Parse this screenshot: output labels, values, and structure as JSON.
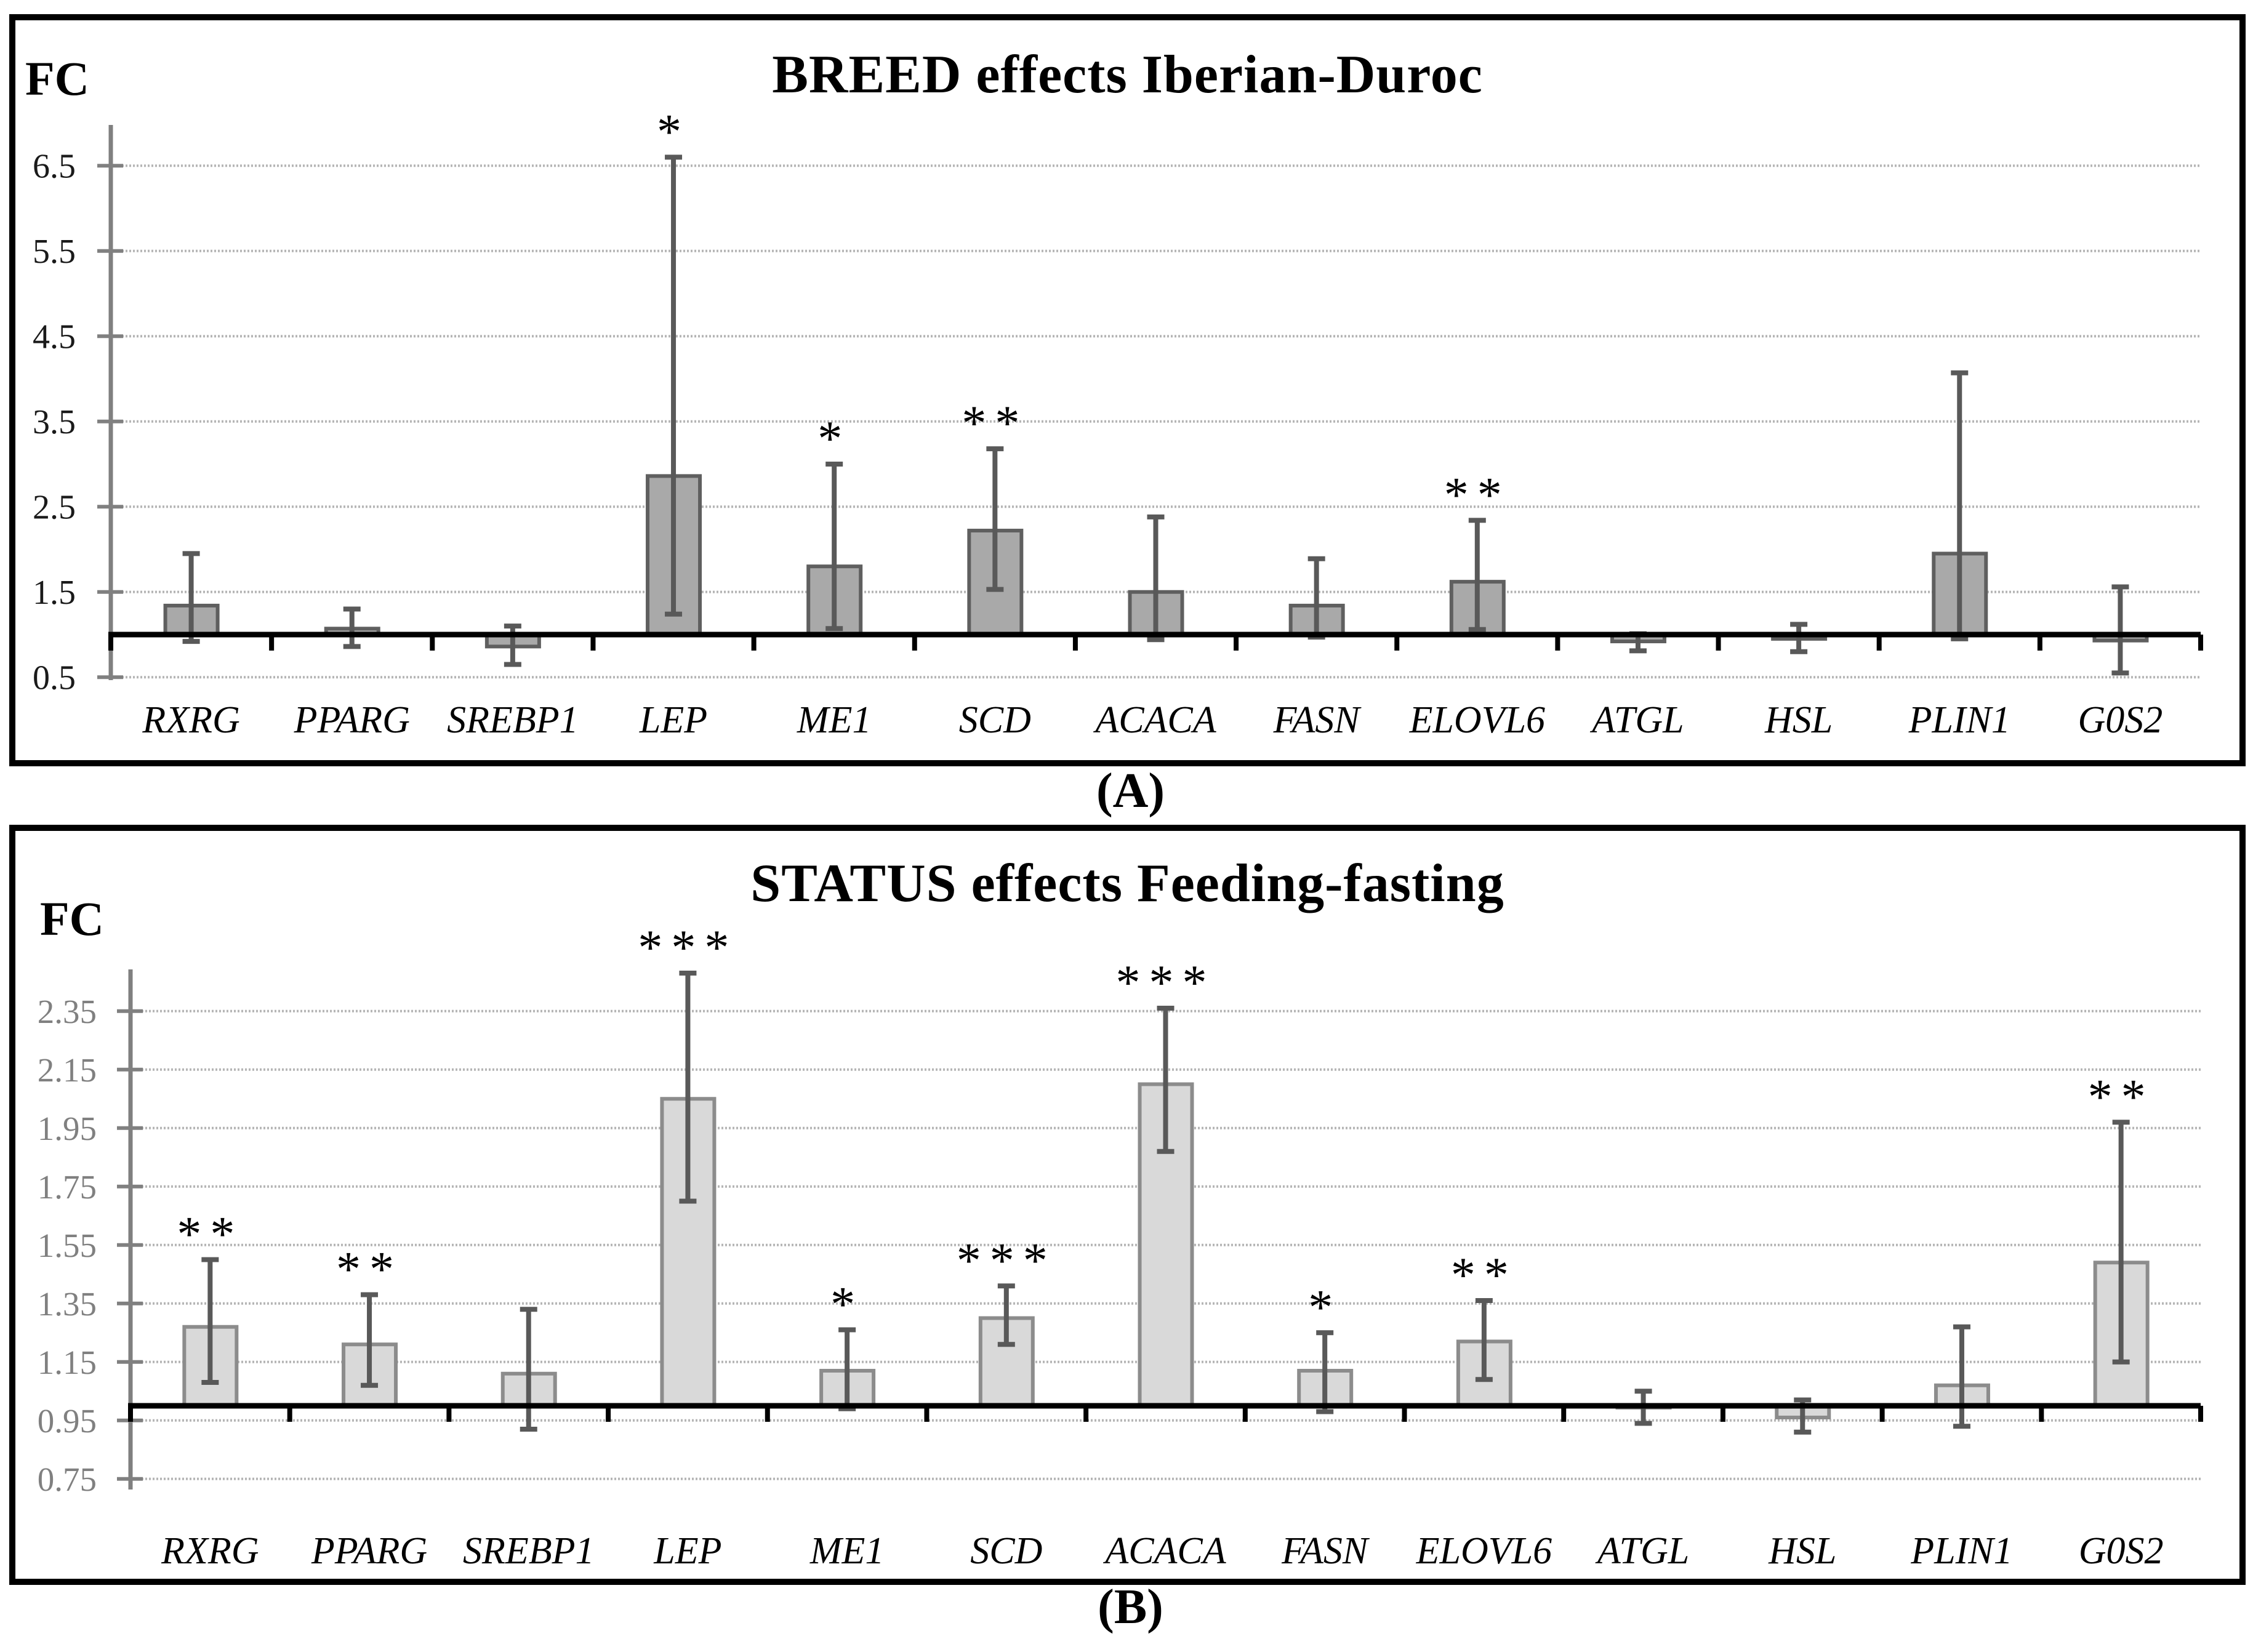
{
  "figure": {
    "captions": [
      "(A)",
      "(B)"
    ]
  },
  "colors": {
    "error_bar": "#595959",
    "gridline": "#b5b5b5",
    "axis": "#808080",
    "baseline": "#000000",
    "significance": "#000000",
    "gene_label": "#000000",
    "panel_a_bar_fill": "#a9a9a9",
    "panel_a_bar_border": "#5f5f5f",
    "panel_b_bar_fill": "#d9d9d9",
    "panel_b_bar_border": "#8c8c8c"
  },
  "chart_data": [
    {
      "type": "bar",
      "title": "BREED effects Iberian-Duroc",
      "ylabel": "FC",
      "xlabel": "",
      "grid": true,
      "legend": "none",
      "baseline": 1.0,
      "ylim": [
        0.45,
        6.98
      ],
      "yticks": [
        0.5,
        1.5,
        2.5,
        3.5,
        4.5,
        5.5,
        6.5
      ],
      "ytick_labels": [
        "0.5",
        "1.5",
        "2.5",
        "3.5",
        "4.5",
        "5.5",
        "6.5"
      ],
      "categories": [
        "RXRG",
        "PPARG",
        "SREBP1",
        "LEP",
        "ME1",
        "SCD",
        "ACACA",
        "FASN",
        "ELOVL6",
        "ATGL",
        "HSL",
        "PLIN1",
        "G0S2"
      ],
      "values": [
        1.34,
        1.07,
        0.86,
        2.86,
        1.8,
        2.22,
        1.5,
        1.34,
        1.62,
        0.92,
        0.95,
        1.95,
        0.93
      ],
      "err_low": [
        0.92,
        0.86,
        0.65,
        1.24,
        1.07,
        1.53,
        0.94,
        0.97,
        1.06,
        0.81,
        0.8,
        0.95,
        0.55
      ],
      "err_high": [
        1.95,
        1.3,
        1.1,
        6.6,
        3.0,
        3.18,
        2.38,
        1.89,
        2.34,
        1.01,
        1.12,
        4.07,
        1.56
      ],
      "significance": [
        "",
        "",
        "",
        "*",
        "*",
        "**",
        "",
        "",
        "**",
        "",
        "",
        "",
        ""
      ],
      "bar_fill": "#a9a9a9",
      "bar_border": "#5f5f5f",
      "tick_label_color": "#1a1a1a"
    },
    {
      "type": "bar",
      "title": "STATUS effects Feeding-fasting",
      "ylabel": "FC",
      "xlabel": "",
      "grid": true,
      "legend": "none",
      "baseline": 1.0,
      "ylim": [
        0.7,
        2.5
      ],
      "yticks": [
        0.75,
        0.95,
        1.15,
        1.35,
        1.55,
        1.75,
        1.95,
        2.15,
        2.35
      ],
      "ytick_labels": [
        "0.75",
        "0.95",
        "1.15",
        "1.35",
        "1.55",
        "1.75",
        "1.95",
        "2.15",
        "2.35"
      ],
      "categories": [
        "RXRG",
        "PPARG",
        "SREBP1",
        "LEP",
        "ME1",
        "SCD",
        "ACACA",
        "FASN",
        "ELOVL6",
        "ATGL",
        "HSL",
        "PLIN1",
        "G0S2"
      ],
      "values": [
        1.27,
        1.21,
        1.11,
        2.05,
        1.12,
        1.3,
        2.1,
        1.12,
        1.22,
        1.0,
        0.96,
        1.07,
        1.49
      ],
      "err_low": [
        1.08,
        1.07,
        0.92,
        1.7,
        0.99,
        1.21,
        1.87,
        0.98,
        1.09,
        0.94,
        0.91,
        0.93,
        1.15
      ],
      "err_high": [
        1.5,
        1.38,
        1.33,
        2.48,
        1.26,
        1.41,
        2.36,
        1.25,
        1.36,
        1.05,
        1.02,
        1.27,
        1.97
      ],
      "significance": [
        "**",
        "**",
        "",
        "***",
        "*",
        "***",
        "***",
        "*",
        "**",
        "",
        "",
        "",
        "**"
      ],
      "bar_fill": "#d9d9d9",
      "bar_border": "#8c8c8c",
      "tick_label_color": "#808080"
    }
  ]
}
